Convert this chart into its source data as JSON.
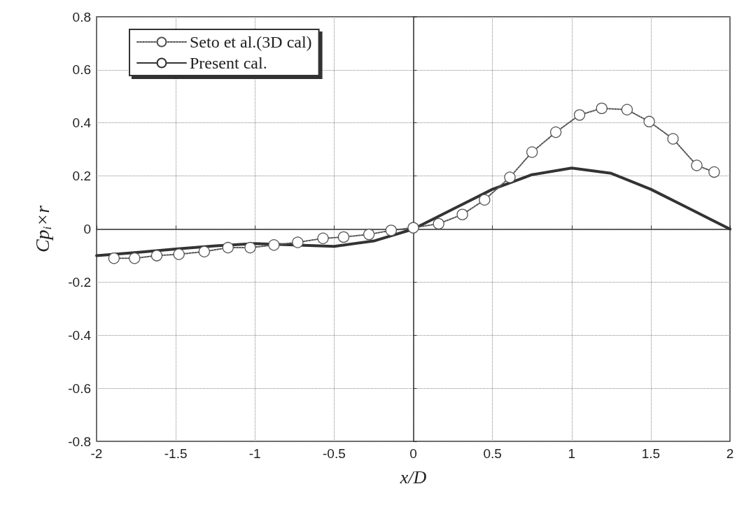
{
  "chart_data": {
    "type": "line",
    "xlabel": "x/D",
    "ylabel": "Cp$_{i}$×r",
    "xlim": [
      -2,
      2
    ],
    "ylim": [
      -0.8,
      0.8
    ],
    "xticks": [
      -2,
      -1.5,
      -1,
      -0.5,
      0,
      0.5,
      1,
      1.5,
      2
    ],
    "yticks": [
      -0.8,
      -0.6,
      -0.4,
      -0.2,
      0,
      0.2,
      0.4,
      0.6,
      0.8
    ],
    "grid": true,
    "legend": "top left",
    "series": [
      {
        "name": "Seto et al.(3D cal)",
        "color": "#555555",
        "marker": "circle",
        "line_style": "dotted",
        "x": [
          -1.89,
          -1.76,
          -1.62,
          -1.48,
          -1.32,
          -1.17,
          -1.03,
          -0.88,
          -0.73,
          -0.57,
          -0.44,
          -0.28,
          -0.14,
          0.0,
          0.16,
          0.31,
          0.45,
          0.61,
          0.75,
          0.9,
          1.05,
          1.19,
          1.35,
          1.49,
          1.64,
          1.79,
          1.9
        ],
        "values": [
          -0.11,
          -0.11,
          -0.1,
          -0.095,
          -0.085,
          -0.07,
          -0.07,
          -0.06,
          -0.05,
          -0.035,
          -0.03,
          -0.02,
          -0.005,
          0.005,
          0.02,
          0.055,
          0.11,
          0.195,
          0.29,
          0.365,
          0.43,
          0.455,
          0.45,
          0.405,
          0.34,
          0.24,
          0.215
        ]
      },
      {
        "name": "Present cal.",
        "color": "#333333",
        "marker": "none",
        "line_style": "solid",
        "x": [
          -2,
          -1.75,
          -1.5,
          -1.25,
          -1,
          -0.75,
          -0.5,
          -0.25,
          0,
          0.25,
          0.5,
          0.75,
          1,
          1.25,
          1.5,
          1.75,
          2
        ],
        "values": [
          -0.1,
          -0.088,
          -0.075,
          -0.063,
          -0.055,
          -0.06,
          -0.065,
          -0.045,
          0.0,
          0.075,
          0.15,
          0.205,
          0.23,
          0.21,
          0.15,
          0.075,
          0.0
        ]
      }
    ]
  }
}
